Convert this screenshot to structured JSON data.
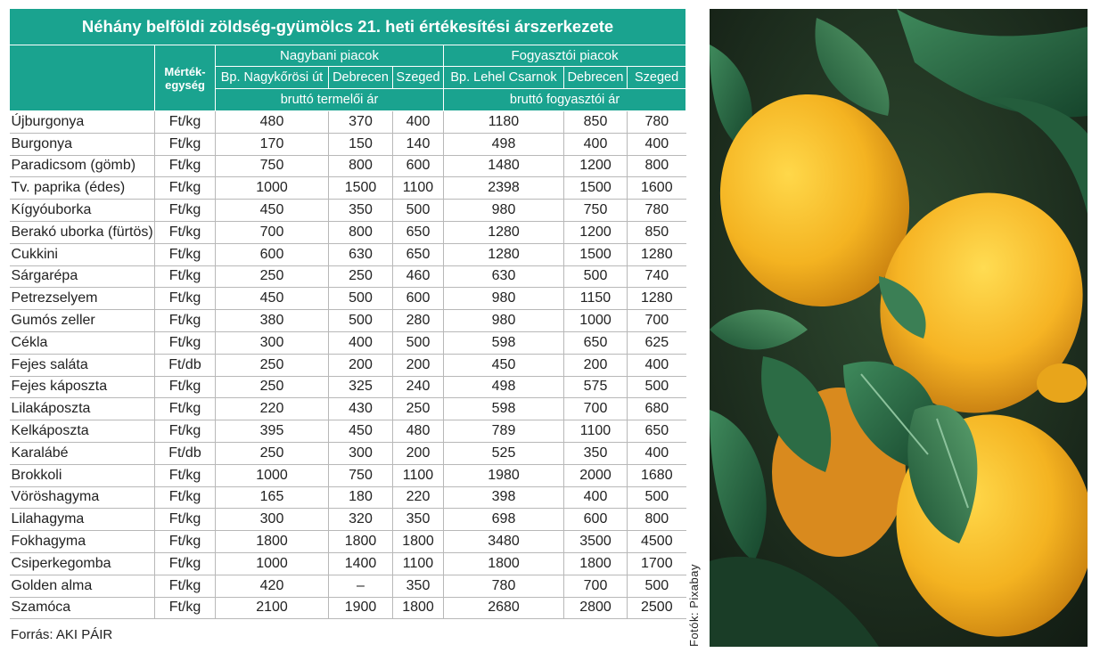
{
  "title": "Néhány belföldi zöldség-gyümölcs 21. heti értékesítési árszerkezete",
  "unit_header": [
    "Mérték-",
    "egység"
  ],
  "groups": {
    "wholesale": "Nagybani piacok",
    "consumer": "Fogyasztói piacok"
  },
  "markets": {
    "wholesale": [
      "Bp. Nagykőrösi út",
      "Debrecen",
      "Szeged"
    ],
    "consumer": [
      "Bp. Lehel Csarnok",
      "Debrecen",
      "Szeged"
    ]
  },
  "price_types": {
    "wholesale": "bruttó termelői ár",
    "consumer": "bruttó fogyasztói ár"
  },
  "rows": [
    [
      "Újburgonya",
      "Ft/kg",
      "480",
      "370",
      "400",
      "1180",
      "850",
      "780"
    ],
    [
      "Burgonya",
      "Ft/kg",
      "170",
      "150",
      "140",
      "498",
      "400",
      "400"
    ],
    [
      "Paradicsom (gömb)",
      "Ft/kg",
      "750",
      "800",
      "600",
      "1480",
      "1200",
      "800"
    ],
    [
      "Tv. paprika (édes)",
      "Ft/kg",
      "1000",
      "1500",
      "1100",
      "2398",
      "1500",
      "1600"
    ],
    [
      "Kígyóuborka",
      "Ft/kg",
      "450",
      "350",
      "500",
      "980",
      "750",
      "780"
    ],
    [
      "Berakó uborka (fürtös)",
      "Ft/kg",
      "700",
      "800",
      "650",
      "1280",
      "1200",
      "850"
    ],
    [
      "Cukkini",
      "Ft/kg",
      "600",
      "630",
      "650",
      "1280",
      "1500",
      "1280"
    ],
    [
      "Sárgarépa",
      "Ft/kg",
      "250",
      "250",
      "460",
      "630",
      "500",
      "740"
    ],
    [
      "Petrezselyem",
      "Ft/kg",
      "450",
      "500",
      "600",
      "980",
      "1150",
      "1280"
    ],
    [
      "Gumós zeller",
      "Ft/kg",
      "380",
      "500",
      "280",
      "980",
      "1000",
      "700"
    ],
    [
      "Cékla",
      "Ft/kg",
      "300",
      "400",
      "500",
      "598",
      "650",
      "625"
    ],
    [
      "Fejes saláta",
      "Ft/db",
      "250",
      "200",
      "200",
      "450",
      "200",
      "400"
    ],
    [
      "Fejes káposzta",
      "Ft/kg",
      "250",
      "325",
      "240",
      "498",
      "575",
      "500"
    ],
    [
      "Lilakáposzta",
      "Ft/kg",
      "220",
      "430",
      "250",
      "598",
      "700",
      "680"
    ],
    [
      "Kelkáposzta",
      "Ft/kg",
      "395",
      "450",
      "480",
      "789",
      "1100",
      "650"
    ],
    [
      "Karalábé",
      "Ft/db",
      "250",
      "300",
      "200",
      "525",
      "350",
      "400"
    ],
    [
      "Brokkoli",
      "Ft/kg",
      "1000",
      "750",
      "1100",
      "1980",
      "2000",
      "1680"
    ],
    [
      "Vöröshagyma",
      "Ft/kg",
      "165",
      "180",
      "220",
      "398",
      "400",
      "500"
    ],
    [
      "Lilahagyma",
      "Ft/kg",
      "300",
      "320",
      "350",
      "698",
      "600",
      "800"
    ],
    [
      "Fokhagyma",
      "Ft/kg",
      "1800",
      "1800",
      "1800",
      "3480",
      "3500",
      "4500"
    ],
    [
      "Csiperkegomba",
      "Ft/kg",
      "1000",
      "1400",
      "1100",
      "1800",
      "1800",
      "1700"
    ],
    [
      "Golden alma",
      "Ft/kg",
      "420",
      "–",
      "350",
      "780",
      "700",
      "500"
    ],
    [
      "Szamóca",
      "Ft/kg",
      "2100",
      "1900",
      "1800",
      "2680",
      "2800",
      "2500"
    ]
  ],
  "source": "Forrás: AKI PÁIR",
  "photo_credit": "Fotók: Pixabay",
  "colors": {
    "header_bg": "#1aa38f",
    "header_text": "#ffffff",
    "lemon": "#f4b321",
    "leaf": "#1f5d3d"
  }
}
